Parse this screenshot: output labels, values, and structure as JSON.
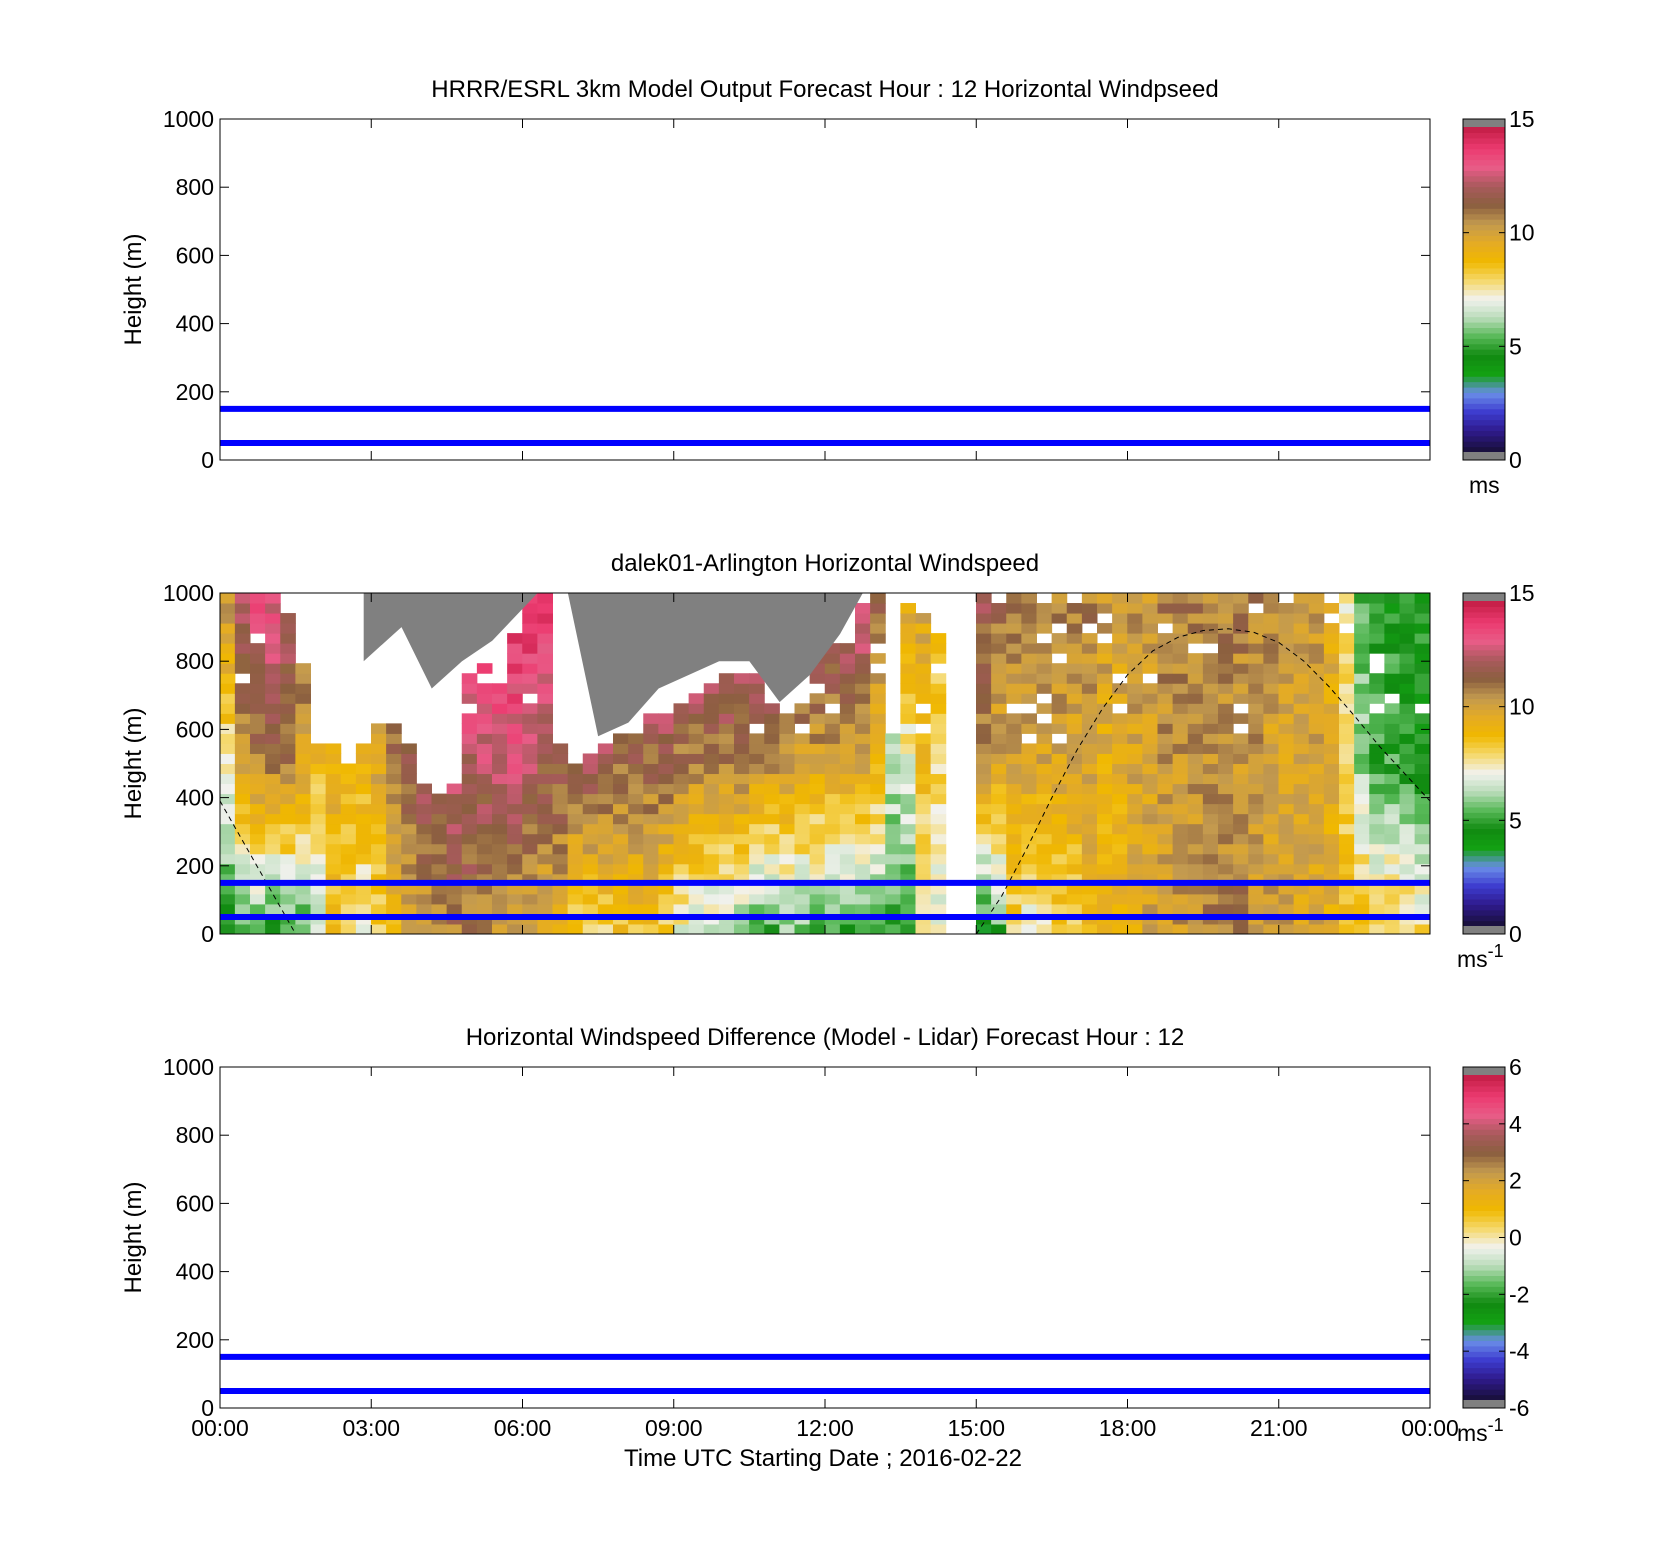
{
  "chart_data": [
    {
      "type": "heatmap",
      "title": "HRRR/ESRL 3km Model Output   Forecast Hour : 12 Horizontal Windpseed",
      "xlabel": "",
      "ylabel": "Height (m)",
      "xlim": [
        0,
        24
      ],
      "ylim": [
        0,
        1000
      ],
      "x_ticks": [],
      "y_ticks": [
        "0",
        "200",
        "400",
        "600",
        "800",
        "1000"
      ],
      "grid": false,
      "colorbar": {
        "range": [
          0,
          15
        ],
        "ticks": [
          "0",
          "5",
          "10",
          "15"
        ],
        "unit": "ms",
        "unit_sup": "",
        "colors": [
          "#808080",
          "#1a1040",
          "#2f1a8c",
          "#3d3ccf",
          "#6a8ee8",
          "#13a113",
          "#118a11",
          "#56b856",
          "#b9dcb9",
          "#f2f2ee",
          "#f5d86a",
          "#f0b800",
          "#e4ab25",
          "#c39a4f",
          "#8b5f3f",
          "#a85a5c",
          "#e85c87",
          "#ec3b70",
          "#c7204a",
          "#808080"
        ]
      },
      "reference_lines": [
        {
          "y": 50,
          "color": "#0000ff"
        },
        {
          "y": 150,
          "color": "#0000ff"
        }
      ]
    },
    {
      "type": "heatmap",
      "title": "dalek01-Arlington  Horizontal Windspeed",
      "xlabel": "",
      "ylabel": "Height (m)",
      "xlim": [
        0,
        24
      ],
      "ylim": [
        0,
        1000
      ],
      "x_ticks": [],
      "y_ticks": [
        "0",
        "200",
        "400",
        "600",
        "800",
        "1000"
      ],
      "grid": false,
      "colorbar": {
        "range": [
          0,
          15
        ],
        "ticks": [
          "0",
          "5",
          "10",
          "15"
        ],
        "unit": "ms",
        "unit_sup": "-1",
        "colors": [
          "#808080",
          "#1a1040",
          "#2f1a8c",
          "#3d3ccf",
          "#6a8ee8",
          "#13a113",
          "#118a11",
          "#56b856",
          "#b9dcb9",
          "#f2f2ee",
          "#f5d86a",
          "#f0b800",
          "#e4ab25",
          "#c39a4f",
          "#8b5f3f",
          "#a85a5c",
          "#e85c87",
          "#ec3b70",
          "#c7204a",
          "#808080"
        ]
      },
      "reference_lines": [
        {
          "y": 50,
          "color": "#0000ff"
        },
        {
          "y": 150,
          "color": "#0000ff"
        }
      ],
      "boundary_layer_curve": {
        "style": "dashed",
        "x": [
          0.0,
          0.5,
          1.0,
          1.5,
          15.0,
          15.5,
          16.0,
          16.5,
          17.0,
          17.5,
          18.0,
          18.5,
          19.0,
          19.5,
          20.0,
          20.5,
          21.0,
          21.5,
          22.0,
          22.5,
          23.0,
          23.5,
          24.0
        ],
        "y": [
          390,
          260,
          130,
          0,
          0,
          110,
          250,
          400,
          540,
          660,
          760,
          830,
          870,
          890,
          895,
          885,
          855,
          800,
          725,
          640,
          550,
          470,
          390
        ]
      },
      "speed_columns": [
        {
          "t": 0.15,
          "top": 10.5,
          "mid": 7.5,
          "low": 4.5,
          "hmax": 1000
        },
        {
          "t": 0.45,
          "top": 13,
          "mid": 10,
          "low": 5,
          "hmax": 1000
        },
        {
          "t": 0.75,
          "top": 13.5,
          "mid": 11,
          "low": 5,
          "hmax": 1000
        },
        {
          "t": 1.05,
          "top": 13.5,
          "mid": 11,
          "low": 4.5,
          "hmax": 1000
        },
        {
          "t": 1.35,
          "top": 13,
          "mid": 11,
          "low": 5,
          "hmax": 950
        },
        {
          "t": 1.65,
          "top": 12,
          "mid": 10,
          "low": 5,
          "hmax": 820
        },
        {
          "t": 1.95,
          "top": 11,
          "mid": 9,
          "low": 6,
          "hmax": 560
        },
        {
          "t": 2.25,
          "top": 12,
          "mid": 9.5,
          "low": 8.5,
          "hmax": 560
        },
        {
          "t": 2.55,
          "top": 12,
          "mid": 9.5,
          "low": 8,
          "hmax": 520
        },
        {
          "t": 2.85,
          "top": 11.5,
          "mid": 9.5,
          "low": 7,
          "hmax": 560
        },
        {
          "t": 3.15,
          "top": 13,
          "mid": 10,
          "low": 8,
          "hmax": 620
        },
        {
          "t": 3.45,
          "top": 14,
          "mid": 11,
          "low": 9,
          "hmax": 620
        },
        {
          "t": 3.75,
          "top": 14.5,
          "mid": 12,
          "low": 10,
          "hmax": 580
        },
        {
          "t": 4.05,
          "top": 14.5,
          "mid": 12.5,
          "low": 10,
          "hmax": 450
        },
        {
          "t": 4.35,
          "top": 14.5,
          "mid": 12.5,
          "low": 10.5,
          "hmax": 420
        },
        {
          "t": 4.65,
          "top": 14.5,
          "mid": 13,
          "low": 11,
          "hmax": 450
        },
        {
          "t": 4.95,
          "top": 14.5,
          "mid": 12.5,
          "low": 11,
          "hmax": 770
        },
        {
          "t": 5.25,
          "top": 14.5,
          "mid": 12.5,
          "low": 10.5,
          "hmax": 800
        },
        {
          "t": 5.55,
          "top": 14.5,
          "mid": 13,
          "low": 10.5,
          "hmax": 750
        },
        {
          "t": 5.85,
          "top": 14.5,
          "mid": 13,
          "low": 10,
          "hmax": 900
        },
        {
          "t": 6.15,
          "top": 14.5,
          "mid": 12.5,
          "low": 10,
          "hmax": 1000
        },
        {
          "t": 6.45,
          "top": 14.5,
          "mid": 12,
          "low": 9.5,
          "hmax": 1000
        },
        {
          "t": 6.75,
          "top": 14.5,
          "mid": 12,
          "low": 9.5,
          "hmax": 580
        },
        {
          "t": 7.05,
          "top": 14,
          "mid": 12,
          "low": 8,
          "hmax": 520
        },
        {
          "t": 7.35,
          "top": 14,
          "mid": 12,
          "low": 8,
          "hmax": 540
        },
        {
          "t": 7.65,
          "top": 14,
          "mid": 12,
          "low": 8,
          "hmax": 580
        },
        {
          "t": 7.95,
          "top": 14,
          "mid": 11.5,
          "low": 8.5,
          "hmax": 600
        },
        {
          "t": 8.25,
          "top": 14,
          "mid": 11.5,
          "low": 8.5,
          "hmax": 640
        },
        {
          "t": 8.55,
          "top": 14,
          "mid": 11.5,
          "low": 8.5,
          "hmax": 660
        },
        {
          "t": 8.85,
          "top": 14,
          "mid": 11.5,
          "low": 8,
          "hmax": 690
        },
        {
          "t": 9.15,
          "top": 14,
          "mid": 11,
          "low": 7,
          "hmax": 700
        },
        {
          "t": 9.45,
          "top": 14,
          "mid": 11,
          "low": 6.5,
          "hmax": 720
        },
        {
          "t": 9.75,
          "top": 14,
          "mid": 11,
          "low": 6,
          "hmax": 750
        },
        {
          "t": 10.05,
          "top": 14,
          "mid": 11,
          "low": 6,
          "hmax": 770
        },
        {
          "t": 10.35,
          "top": 14,
          "mid": 11,
          "low": 5.5,
          "hmax": 770
        },
        {
          "t": 10.65,
          "top": 14,
          "mid": 10.5,
          "low": 5,
          "hmax": 780
        },
        {
          "t": 10.95,
          "top": 14,
          "mid": 10.5,
          "low": 5,
          "hmax": 700
        },
        {
          "t": 11.25,
          "top": 14,
          "mid": 10.5,
          "low": 5.5,
          "hmax": 650
        },
        {
          "t": 11.55,
          "top": 14,
          "mid": 10,
          "low": 5.5,
          "hmax": 730
        },
        {
          "t": 11.85,
          "top": 14,
          "mid": 10,
          "low": 5,
          "hmax": 830
        },
        {
          "t": 12.15,
          "top": 13.5,
          "mid": 10,
          "low": 5,
          "hmax": 870
        },
        {
          "t": 12.45,
          "top": 13.5,
          "mid": 10,
          "low": 5,
          "hmax": 880
        },
        {
          "t": 12.75,
          "top": 13.5,
          "mid": 10,
          "low": 5,
          "hmax": 980
        },
        {
          "t": 13.05,
          "top": 12,
          "mid": 9,
          "low": 5,
          "hmax": 1000
        },
        {
          "t": 13.35,
          "top": 7,
          "mid": 6.5,
          "low": 5,
          "hmax": 600
        },
        {
          "t": 13.65,
          "top": 10,
          "mid": 7,
          "low": 5,
          "hmax": 980
        },
        {
          "t": 13.95,
          "top": 10,
          "mid": 9,
          "low": 7,
          "hmax": 950
        },
        {
          "t": 14.25,
          "top": 9,
          "mid": 8,
          "low": 7,
          "hmax": 900
        },
        {
          "t": 15.15,
          "top": 12,
          "mid": 10.5,
          "low": 4,
          "hmax": 1000
        },
        {
          "t": 15.45,
          "top": 11.5,
          "mid": 10,
          "low": 5,
          "hmax": 980
        },
        {
          "t": 15.75,
          "top": 11.5,
          "mid": 10,
          "low": 8,
          "hmax": 1000
        },
        {
          "t": 16.05,
          "top": 11.5,
          "mid": 10,
          "low": 7,
          "hmax": 1000
        },
        {
          "t": 16.35,
          "top": 11.5,
          "mid": 10,
          "low": 7,
          "hmax": 1000
        },
        {
          "t": 16.65,
          "top": 11,
          "mid": 10,
          "low": 8,
          "hmax": 1000
        },
        {
          "t": 16.95,
          "top": 11,
          "mid": 10,
          "low": 8,
          "hmax": 1000
        },
        {
          "t": 17.25,
          "top": 11,
          "mid": 10,
          "low": 9,
          "hmax": 1000
        },
        {
          "t": 17.55,
          "top": 10.5,
          "mid": 9.5,
          "low": 9,
          "hmax": 1000
        },
        {
          "t": 17.85,
          "top": 10.5,
          "mid": 9.5,
          "low": 9,
          "hmax": 1000
        },
        {
          "t": 18.15,
          "top": 10.5,
          "mid": 10,
          "low": 9.5,
          "hmax": 1000
        },
        {
          "t": 18.45,
          "top": 10.5,
          "mid": 10,
          "low": 10,
          "hmax": 1000
        },
        {
          "t": 18.75,
          "top": 11,
          "mid": 10.5,
          "low": 10,
          "hmax": 1000
        },
        {
          "t": 19.05,
          "top": 11,
          "mid": 10.5,
          "low": 10.5,
          "hmax": 1000
        },
        {
          "t": 19.35,
          "top": 11,
          "mid": 10.5,
          "low": 10.5,
          "hmax": 1000
        },
        {
          "t": 19.65,
          "top": 11,
          "mid": 10.5,
          "low": 11,
          "hmax": 1000
        },
        {
          "t": 19.95,
          "top": 11,
          "mid": 10.5,
          "low": 11,
          "hmax": 1000
        },
        {
          "t": 20.25,
          "top": 11,
          "mid": 10.5,
          "low": 11,
          "hmax": 1000
        },
        {
          "t": 20.55,
          "top": 11,
          "mid": 10.5,
          "low": 10.5,
          "hmax": 1000
        },
        {
          "t": 20.85,
          "top": 11,
          "mid": 10,
          "low": 10.5,
          "hmax": 1000
        },
        {
          "t": 21.15,
          "top": 11,
          "mid": 10,
          "low": 10.5,
          "hmax": 1000
        },
        {
          "t": 21.45,
          "top": 10.5,
          "mid": 10,
          "low": 10,
          "hmax": 1000
        },
        {
          "t": 21.75,
          "top": 10.5,
          "mid": 10,
          "low": 10,
          "hmax": 1000
        },
        {
          "t": 22.05,
          "top": 10,
          "mid": 9.5,
          "low": 9.5,
          "hmax": 1000
        },
        {
          "t": 22.35,
          "top": 7.5,
          "mid": 8,
          "low": 9,
          "hmax": 1000
        },
        {
          "t": 22.65,
          "top": 5,
          "mid": 6,
          "low": 9,
          "hmax": 1000
        },
        {
          "t": 22.95,
          "top": 5,
          "mid": 5,
          "low": 8.5,
          "hmax": 1000
        },
        {
          "t": 23.25,
          "top": 4.5,
          "mid": 5,
          "low": 8.5,
          "hmax": 1000
        },
        {
          "t": 23.55,
          "top": 4.5,
          "mid": 4.5,
          "low": 8.5,
          "hmax": 1000
        },
        {
          "t": 23.85,
          "top": 4.5,
          "mid": 4.5,
          "low": 8,
          "hmax": 1000
        }
      ],
      "saturated_region": {
        "x": [
          2.85,
          3.6,
          4.2,
          4.8,
          5.4,
          6.3,
          6.9,
          7.5,
          8.1,
          8.7,
          9.3,
          9.9,
          10.5,
          11.1,
          11.7,
          12.3,
          12.75
        ],
        "y": [
          800,
          900,
          720,
          800,
          860,
          1000,
          1000,
          580,
          620,
          720,
          760,
          800,
          800,
          680,
          760,
          880,
          1000
        ]
      }
    },
    {
      "type": "heatmap",
      "title": "Horizontal Windspeed Difference (Model - Lidar) Forecast Hour : 12",
      "xlabel": "Time UTC  Starting Date ; 2016-02-22",
      "ylabel": "Height (m)",
      "xlim": [
        0,
        24
      ],
      "ylim": [
        0,
        1000
      ],
      "x_ticks": [
        "00:00",
        "03:00",
        "06:00",
        "09:00",
        "12:00",
        "15:00",
        "18:00",
        "21:00",
        "00:00"
      ],
      "y_ticks": [
        "0",
        "200",
        "400",
        "600",
        "800",
        "1000"
      ],
      "grid": false,
      "colorbar": {
        "range": [
          -6,
          6
        ],
        "ticks": [
          "-6",
          "-4",
          "-2",
          "0",
          "2",
          "4",
          "6"
        ],
        "unit": "ms",
        "unit_sup": "-1",
        "colors": [
          "#808080",
          "#1a1040",
          "#2f1a8c",
          "#3d3ccf",
          "#6a8ee8",
          "#13a113",
          "#118a11",
          "#56b856",
          "#b9dcb9",
          "#f2f2ee",
          "#f5d86a",
          "#f0b800",
          "#e4ab25",
          "#c39a4f",
          "#8b5f3f",
          "#a85a5c",
          "#e85c87",
          "#ec3b70",
          "#c7204a",
          "#808080"
        ]
      },
      "reference_lines": [
        {
          "y": 50,
          "color": "#0000ff"
        },
        {
          "y": 150,
          "color": "#0000ff"
        }
      ]
    }
  ]
}
